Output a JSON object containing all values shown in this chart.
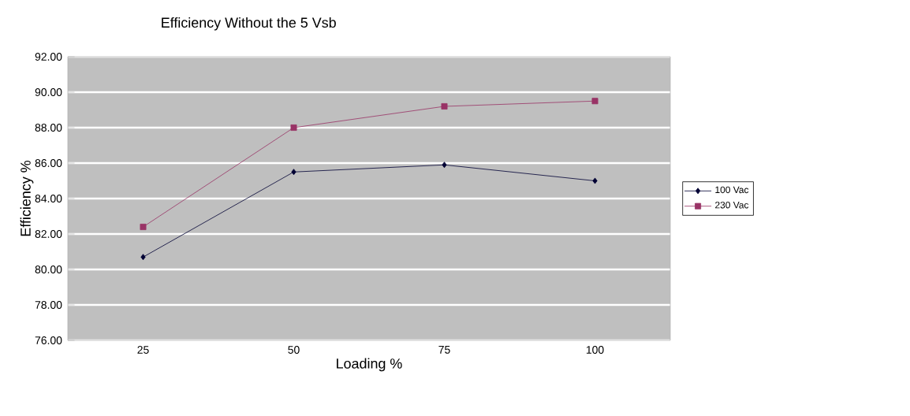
{
  "chart_data": {
    "type": "line",
    "title": "Efficiency Without the 5 Vsb",
    "xlabel": "Loading %",
    "ylabel": "Efficiency %",
    "categories": [
      "25",
      "50",
      "75",
      "100"
    ],
    "series": [
      {
        "name": "100 Vac",
        "color": "#000033",
        "marker": "diamond",
        "values": [
          80.7,
          85.5,
          85.9,
          85.0
        ]
      },
      {
        "name": "230 Vac",
        "color": "#993366",
        "marker": "square",
        "values": [
          82.4,
          88.0,
          89.2,
          89.5
        ]
      }
    ],
    "ylim": [
      76,
      92
    ],
    "yticks": [
      {
        "value": 76,
        "label": "76.00"
      },
      {
        "value": 78,
        "label": "78.00"
      },
      {
        "value": 80,
        "label": "80.00"
      },
      {
        "value": 82,
        "label": "82.00"
      },
      {
        "value": 84,
        "label": "84.00"
      },
      {
        "value": 86,
        "label": "86.00"
      },
      {
        "value": 88,
        "label": "88.00"
      },
      {
        "value": 90,
        "label": "90.00"
      },
      {
        "value": 92,
        "label": "92.00"
      }
    ],
    "grid": "y",
    "legend": "right"
  }
}
